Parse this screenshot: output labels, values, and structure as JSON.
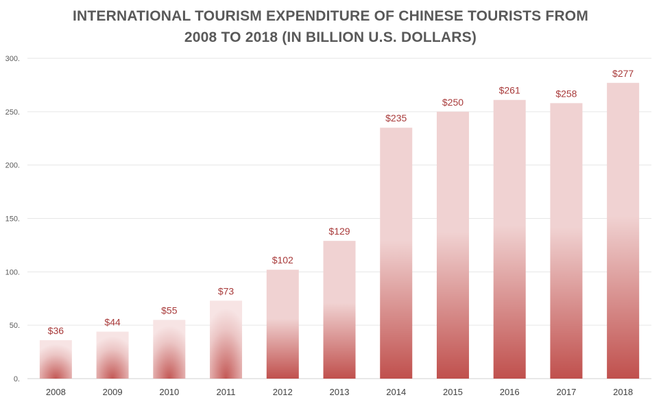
{
  "chart_data": {
    "type": "bar",
    "title_lines": [
      "INTERNATIONAL TOURISM EXPENDITURE OF CHINESE TOURISTS FROM",
      "2008 TO 2018 (IN BILLION U.S. DOLLARS)"
    ],
    "categories": [
      "2008",
      "2009",
      "2010",
      "2011",
      "2012",
      "2013",
      "2014",
      "2015",
      "2016",
      "2017",
      "2018"
    ],
    "values": [
      36,
      44,
      55,
      73,
      102,
      129,
      235,
      250,
      261,
      258,
      277
    ],
    "data_labels": [
      "$36",
      "$44",
      "$55",
      "$73",
      "$102",
      "$129",
      "$235",
      "$250",
      "$261",
      "$258",
      "$277"
    ],
    "y_ticks": [
      0,
      50,
      100,
      150,
      200,
      250,
      300
    ],
    "y_tick_labels": [
      "0.",
      "50.",
      "100.",
      "150.",
      "200.",
      "250.",
      "300."
    ],
    "ylim": [
      0,
      300
    ],
    "grid": true,
    "legend": "none",
    "colors": {
      "bar_dark": "#c0504d",
      "bar_light": "#f7e4e4",
      "label": "#a83a3a",
      "grid": "#e6e6e6"
    }
  }
}
